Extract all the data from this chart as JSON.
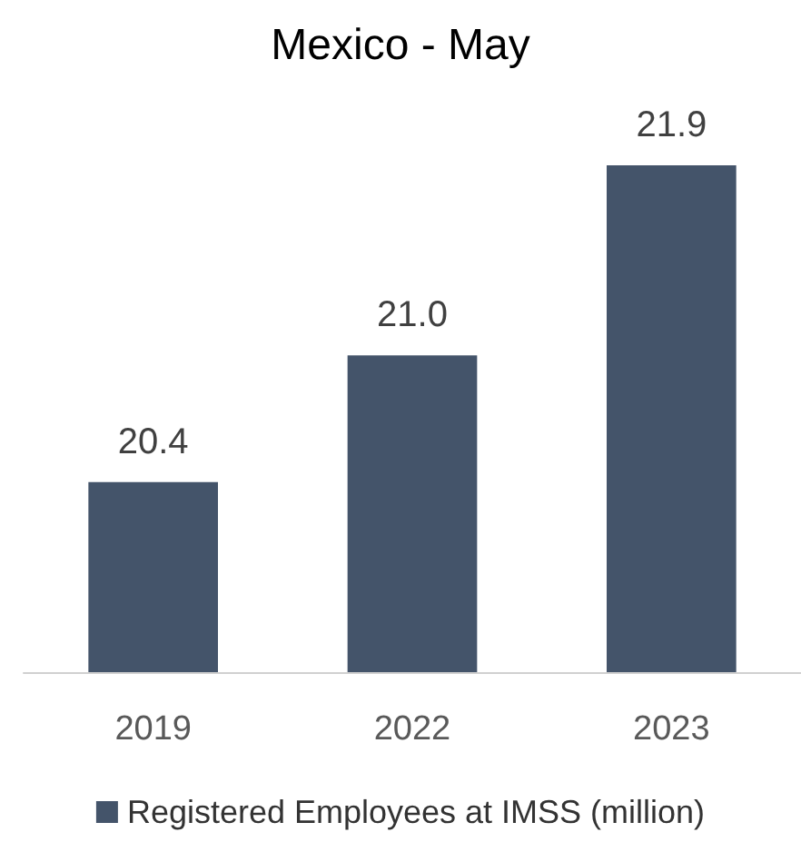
{
  "chart_data": {
    "type": "bar",
    "title": "Mexico - May",
    "categories": [
      "2019",
      "2022",
      "2023"
    ],
    "series": [
      {
        "name": "Registered Employees at IMSS (million)",
        "color": "#44546a",
        "values": [
          20.4,
          21.0,
          21.9
        ],
        "value_labels": [
          "20.4",
          "21.0",
          "21.9"
        ]
      }
    ],
    "ylim": [
      19.5,
      21.9
    ],
    "tick_labels": "x",
    "legend": "bottom",
    "grid": false
  }
}
